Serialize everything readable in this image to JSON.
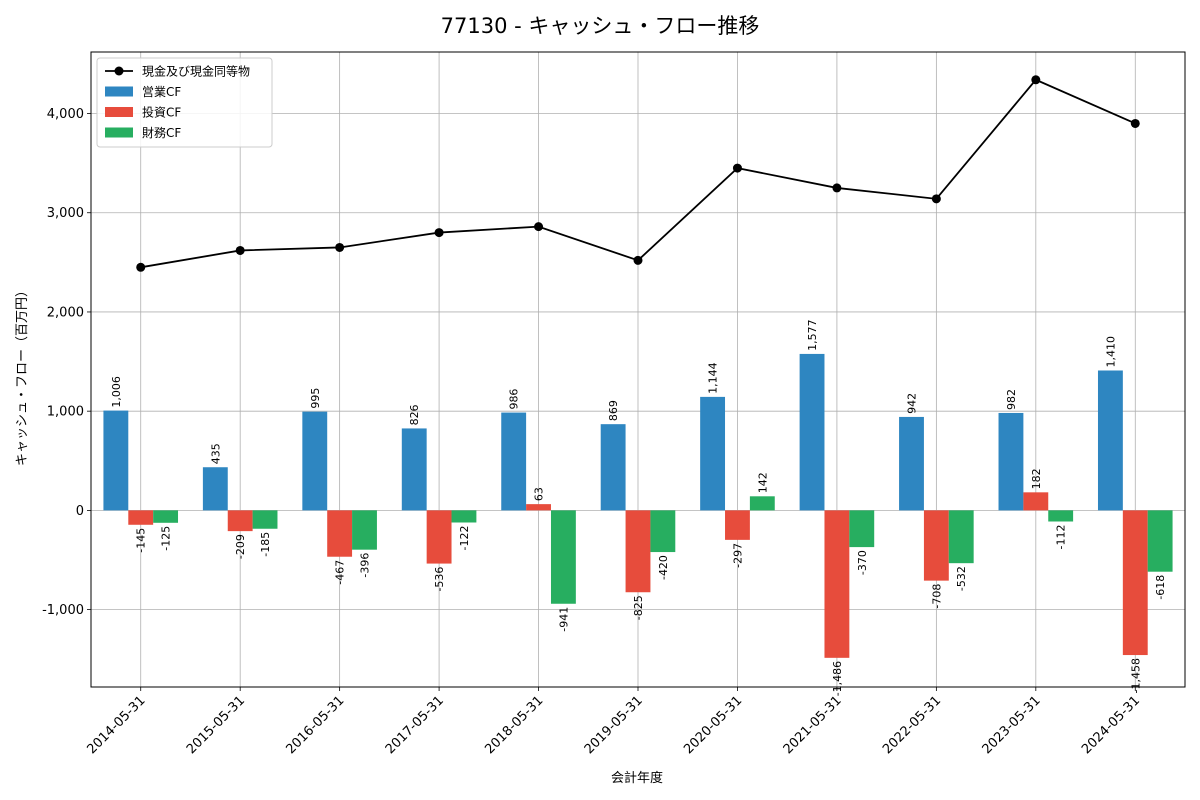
{
  "chart_data": {
    "type": "bar",
    "title": "77130 - キャッシュ・フロー推移",
    "xlabel": "会計年度",
    "ylabel": "キャッシュ・フロー（百万円）",
    "categories": [
      "2014-05-31",
      "2015-05-31",
      "2016-05-31",
      "2017-05-31",
      "2018-05-31",
      "2019-05-31",
      "2020-05-31",
      "2021-05-31",
      "2022-05-31",
      "2023-05-31",
      "2024-05-31"
    ],
    "ylim": [
      -1780,
      4620
    ],
    "yticks": [
      -1000,
      0,
      1000,
      2000,
      3000,
      4000
    ],
    "ytick_labels": [
      "-1,000",
      "0",
      "1,000",
      "2,000",
      "3,000",
      "4,000"
    ],
    "grid": true,
    "legend_position": "top-left",
    "series": [
      {
        "name": "営業CF",
        "kind": "bar",
        "color": "#2e86c1",
        "values": [
          1006,
          435,
          995,
          826,
          986,
          869,
          1144,
          1577,
          942,
          982,
          1410
        ],
        "labels": [
          "1,006",
          "435",
          "995",
          "826",
          "986",
          "869",
          "1,144",
          "1,577",
          "942",
          "982",
          "1,410"
        ]
      },
      {
        "name": "投資CF",
        "kind": "bar",
        "color": "#e74c3c",
        "values": [
          -145,
          -209,
          -467,
          -536,
          63,
          -825,
          -297,
          -1486,
          -708,
          182,
          -1458
        ],
        "labels": [
          "-145",
          "-209",
          "-467",
          "-536",
          "63",
          "-825",
          "-297",
          "-1,486",
          "-708",
          "182",
          "-1,458"
        ]
      },
      {
        "name": "財務CF",
        "kind": "bar",
        "color": "#27ae60",
        "values": [
          -125,
          -185,
          -396,
          -122,
          -941,
          -420,
          142,
          -370,
          -532,
          -112,
          -618
        ],
        "labels": [
          "-125",
          "-185",
          "-396",
          "-122",
          "-941",
          "-420",
          "142",
          "-370",
          "-532",
          "-112",
          "-618"
        ]
      },
      {
        "name": "現金及び現金同等物",
        "kind": "line",
        "color": "#000000",
        "values": [
          2450,
          2620,
          2650,
          2800,
          2860,
          2520,
          3450,
          3250,
          3140,
          4340,
          3900
        ]
      }
    ]
  }
}
